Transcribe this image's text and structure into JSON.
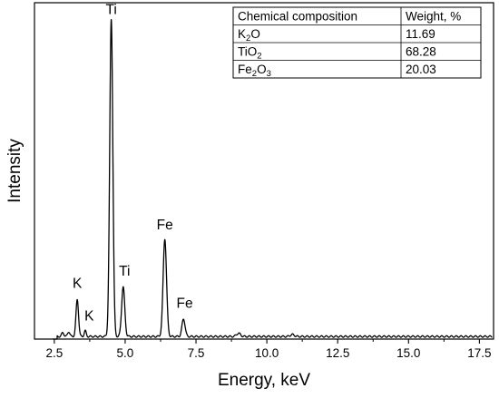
{
  "chart_data": {
    "type": "line",
    "xlabel": "Energy, keV",
    "ylabel": "Intensity",
    "xlim": [
      1.8,
      18.0
    ],
    "ylim": [
      0,
      1.05
    ],
    "x_ticks": [
      "2.5",
      "5.0",
      "7.5",
      "10.0",
      "12.5",
      "15.0",
      "17.5"
    ],
    "x_tick_values": [
      2.5,
      5.0,
      7.5,
      10.0,
      12.5,
      15.0,
      17.5
    ],
    "y_ticks_labeled": false,
    "grid": false,
    "baseline": 0.008,
    "peaks": [
      {
        "label": "K",
        "energy": 3.31,
        "height": 0.115,
        "width": 0.045
      },
      {
        "label": "K",
        "energy": 3.59,
        "height": 0.018,
        "width": 0.035
      },
      {
        "label": "Ti",
        "energy": 4.51,
        "height": 0.99,
        "width": 0.055
      },
      {
        "label": "Ti",
        "energy": 4.93,
        "height": 0.155,
        "width": 0.055
      },
      {
        "label": "Fe",
        "energy": 6.4,
        "height": 0.305,
        "width": 0.06
      },
      {
        "label": "Fe",
        "energy": 7.06,
        "height": 0.055,
        "width": 0.055
      },
      {
        "label": "",
        "energy": 2.8,
        "height": 0.012,
        "width": 0.04
      },
      {
        "label": "",
        "energy": 3.01,
        "height": 0.015,
        "width": 0.04
      },
      {
        "label": "",
        "energy": 9.0,
        "height": 0.01,
        "width": 0.07
      },
      {
        "label": "",
        "energy": 10.9,
        "height": 0.006,
        "width": 0.07
      }
    ],
    "peak_labels": [
      {
        "text": "K",
        "energy": 3.31,
        "y": 0.16
      },
      {
        "text": "K",
        "energy": 3.73,
        "y": 0.058
      },
      {
        "text": "Ti",
        "energy": 4.51,
        "y": 1.015
      },
      {
        "text": "Ti",
        "energy": 4.98,
        "y": 0.198
      },
      {
        "text": "Fe",
        "energy": 6.4,
        "y": 0.343
      },
      {
        "text": "Fe",
        "energy": 7.1,
        "y": 0.098
      }
    ],
    "table": {
      "headers": [
        "Chemical composition",
        "Weight, %"
      ],
      "rows": [
        {
          "formula": [
            "K",
            "2",
            "O"
          ],
          "weight": "11.69"
        },
        {
          "formula": [
            "TiO",
            "2",
            ""
          ],
          "weight": "68.28"
        },
        {
          "formula": [
            "Fe",
            "2",
            "O",
            "3",
            ""
          ],
          "weight": "20.03"
        }
      ]
    },
    "line_color": "#000000"
  }
}
